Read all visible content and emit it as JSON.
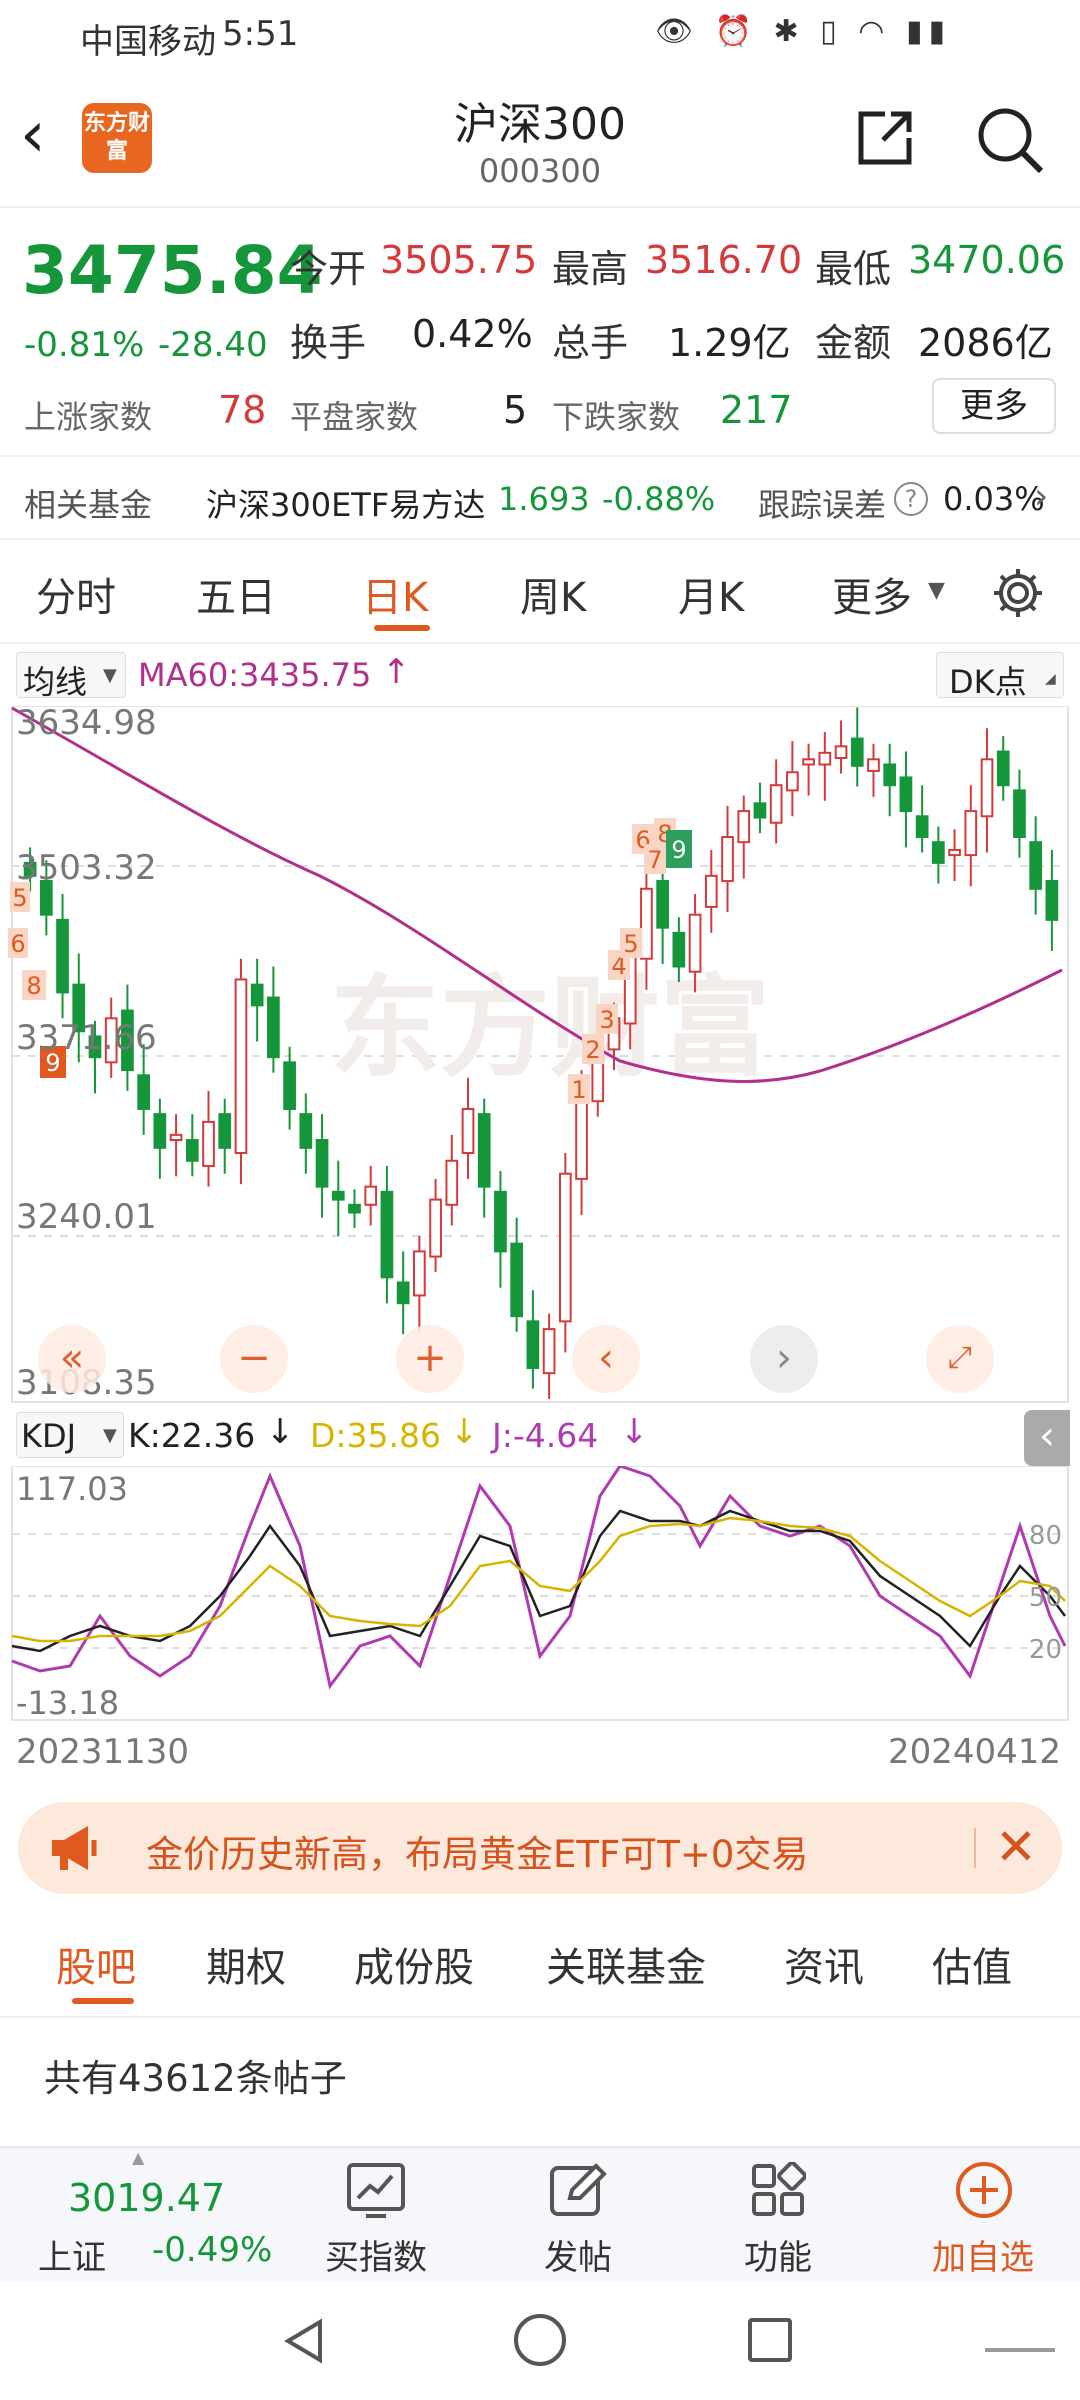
{
  "status_bar": {
    "carrier": "中国移动",
    "time": "5:51"
  },
  "header": {
    "logo_text": "东方财富",
    "title": "沪深300",
    "code": "000300"
  },
  "quote": {
    "price": "3475.84",
    "change_pct": "-0.81%",
    "change": "-28.40",
    "open_label": "今开",
    "open": "3505.75",
    "high_label": "最高",
    "high": "3516.70",
    "low_label": "最低",
    "low": "3470.06",
    "turnover_label": "换手",
    "turnover": "0.42%",
    "volume_label": "总手",
    "volume": "1.29亿",
    "amount_label": "金额",
    "amount": "2086亿",
    "up_label": "上涨家数",
    "up": "78",
    "flat_label": "平盘家数",
    "flat": "5",
    "down_label": "下跌家数",
    "down": "217",
    "more_label": "更多"
  },
  "fund": {
    "label": "相关基金",
    "name": "沪深300ETF易方达",
    "price": "1.693",
    "change": "-0.88%",
    "tracking_label": "跟踪误差",
    "tracking": "0.03%"
  },
  "tabs": [
    "分时",
    "五日",
    "日K",
    "周K",
    "月K",
    "更多"
  ],
  "ma_bar": {
    "selector": "均线",
    "ma60": "MA60:3435.75",
    "dk": "DK点"
  },
  "kline_axis": [
    "3634.98",
    "3503.32",
    "3371.66",
    "3240.01",
    "3108.35"
  ],
  "kdj_bar": {
    "selector": "KDJ",
    "k": "K:22.36",
    "d": "D:35.86",
    "j": "J:-4.64"
  },
  "kdj_axis": {
    "top": "117.03",
    "bottom": "-13.18",
    "levels": [
      "80",
      "50",
      "20"
    ]
  },
  "dates": {
    "start": "20231130",
    "end": "20240412"
  },
  "banner": {
    "text": "金价历史新高，布局黄金ETF可T+0交易"
  },
  "bottom_tabs": [
    "股吧",
    "期权",
    "成份股",
    "关联基金",
    "资讯",
    "估值"
  ],
  "posts": {
    "count_text": "共有43612条帖子"
  },
  "bottom_nav": {
    "index_price": "3019.47",
    "index_name": "上证",
    "index_change": "-0.49%",
    "buy_index": "买指数",
    "post": "发帖",
    "function": "功能",
    "add": "加自选"
  },
  "colors": {
    "up": "#d43a3a",
    "down": "#15963a",
    "ma": "#b0308a",
    "accent": "#e05a1f"
  },
  "chart_data": {
    "type": "candlestick",
    "ylim": [
      3108.35,
      3634.98
    ],
    "ma60_end": 3435.75,
    "close_series": [
      3510,
      3480,
      3420,
      3390,
      3370,
      3400,
      3360,
      3330,
      3300,
      3310,
      3290,
      3320,
      3300,
      3430,
      3410,
      3370,
      3330,
      3300,
      3270,
      3260,
      3250,
      3270,
      3200,
      3180,
      3220,
      3260,
      3290,
      3330,
      3270,
      3220,
      3170,
      3130,
      3160,
      3280,
      3340,
      3370,
      3400,
      3450,
      3500,
      3470,
      3440,
      3480,
      3510,
      3540,
      3560,
      3555,
      3580,
      3590,
      3600,
      3605,
      3610,
      3595,
      3600,
      3580,
      3560,
      3540,
      3520,
      3530,
      3560,
      3600,
      3580,
      3540,
      3500,
      3476
    ]
  }
}
